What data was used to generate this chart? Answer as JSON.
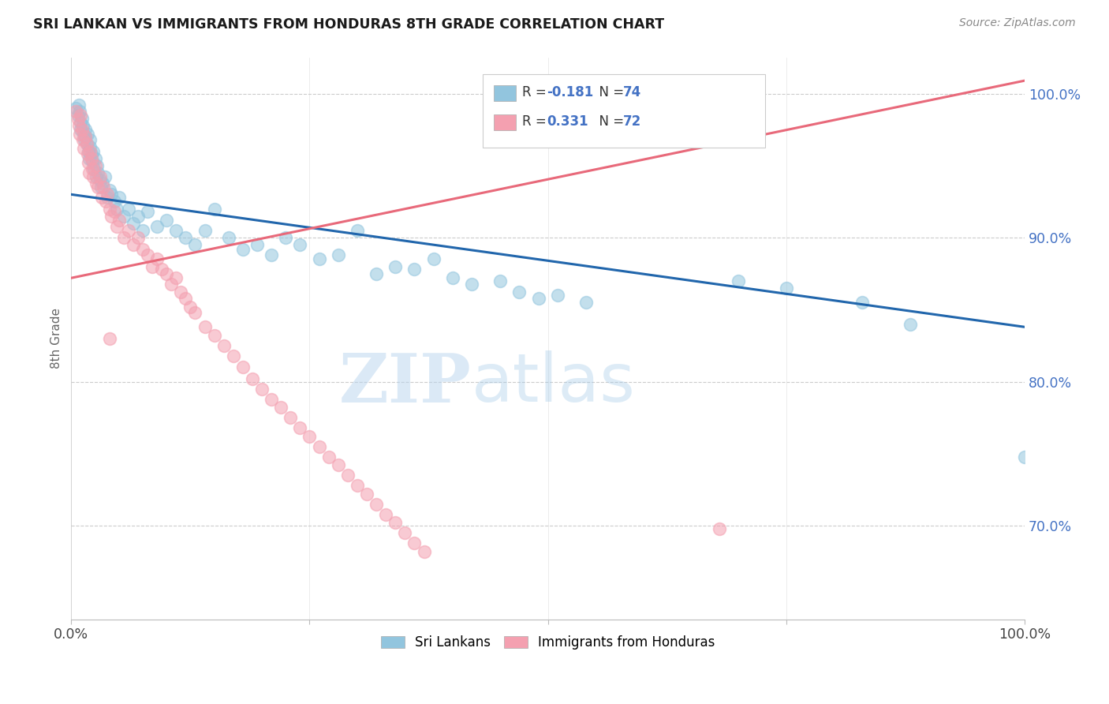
{
  "title": "SRI LANKAN VS IMMIGRANTS FROM HONDURAS 8TH GRADE CORRELATION CHART",
  "source": "Source: ZipAtlas.com",
  "ylabel": "8th Grade",
  "xlim": [
    0,
    1.0
  ],
  "ylim": [
    0.635,
    1.025
  ],
  "yticks": [
    0.7,
    0.8,
    0.9,
    1.0
  ],
  "ytick_labels": [
    "70.0%",
    "80.0%",
    "90.0%",
    "100.0%"
  ],
  "xticks": [
    0.0,
    0.25,
    0.5,
    0.75,
    1.0
  ],
  "xtick_labels": [
    "0.0%",
    "",
    "",
    "",
    "100.0%"
  ],
  "blue_color": "#92c5de",
  "pink_color": "#f4a0b0",
  "blue_line_color": "#2166ac",
  "pink_line_color": "#e8697a",
  "watermark_zip": "ZIP",
  "watermark_atlas": "atlas",
  "blue_trend_x": [
    0.0,
    1.0
  ],
  "blue_trend_y": [
    0.93,
    0.838
  ],
  "pink_trend_x": [
    0.0,
    1.0
  ],
  "pink_trend_y": [
    0.872,
    1.009
  ],
  "blue_r": "-0.181",
  "blue_n": "74",
  "pink_r": "0.331",
  "pink_n": "72",
  "blue_points_x": [
    0.005,
    0.007,
    0.008,
    0.009,
    0.01,
    0.01,
    0.011,
    0.012,
    0.013,
    0.014,
    0.015,
    0.015,
    0.016,
    0.017,
    0.018,
    0.019,
    0.02,
    0.02,
    0.021,
    0.022,
    0.023,
    0.024,
    0.025,
    0.026,
    0.027,
    0.028,
    0.03,
    0.031,
    0.033,
    0.035,
    0.038,
    0.04,
    0.042,
    0.045,
    0.048,
    0.05,
    0.055,
    0.06,
    0.065,
    0.07,
    0.075,
    0.08,
    0.09,
    0.1,
    0.11,
    0.12,
    0.13,
    0.14,
    0.15,
    0.165,
    0.18,
    0.195,
    0.21,
    0.225,
    0.24,
    0.26,
    0.28,
    0.3,
    0.32,
    0.34,
    0.36,
    0.38,
    0.4,
    0.42,
    0.45,
    0.47,
    0.49,
    0.51,
    0.54,
    0.7,
    0.75,
    0.83,
    0.88,
    1.0
  ],
  "blue_points_y": [
    0.99,
    0.985,
    0.992,
    0.988,
    0.98,
    0.975,
    0.983,
    0.978,
    0.972,
    0.968,
    0.975,
    0.97,
    0.965,
    0.972,
    0.96,
    0.955,
    0.968,
    0.963,
    0.958,
    0.953,
    0.96,
    0.948,
    0.955,
    0.942,
    0.95,
    0.945,
    0.94,
    0.935,
    0.938,
    0.942,
    0.928,
    0.933,
    0.93,
    0.925,
    0.92,
    0.928,
    0.915,
    0.92,
    0.91,
    0.915,
    0.905,
    0.918,
    0.908,
    0.912,
    0.905,
    0.9,
    0.895,
    0.905,
    0.92,
    0.9,
    0.892,
    0.895,
    0.888,
    0.9,
    0.895,
    0.885,
    0.888,
    0.905,
    0.875,
    0.88,
    0.878,
    0.885,
    0.872,
    0.868,
    0.87,
    0.862,
    0.858,
    0.86,
    0.855,
    0.87,
    0.865,
    0.855,
    0.84,
    0.748
  ],
  "pink_points_x": [
    0.005,
    0.007,
    0.008,
    0.009,
    0.01,
    0.011,
    0.012,
    0.013,
    0.015,
    0.016,
    0.017,
    0.018,
    0.019,
    0.02,
    0.021,
    0.022,
    0.023,
    0.025,
    0.026,
    0.028,
    0.03,
    0.032,
    0.034,
    0.036,
    0.038,
    0.04,
    0.042,
    0.045,
    0.048,
    0.05,
    0.055,
    0.06,
    0.065,
    0.07,
    0.075,
    0.08,
    0.085,
    0.09,
    0.095,
    0.1,
    0.105,
    0.11,
    0.115,
    0.12,
    0.125,
    0.13,
    0.14,
    0.15,
    0.16,
    0.17,
    0.18,
    0.19,
    0.2,
    0.21,
    0.22,
    0.23,
    0.24,
    0.25,
    0.26,
    0.27,
    0.28,
    0.29,
    0.3,
    0.31,
    0.32,
    0.33,
    0.34,
    0.35,
    0.36,
    0.37,
    0.04,
    0.68
  ],
  "pink_points_y": [
    0.988,
    0.982,
    0.978,
    0.972,
    0.985,
    0.975,
    0.968,
    0.962,
    0.97,
    0.965,
    0.958,
    0.952,
    0.945,
    0.96,
    0.955,
    0.948,
    0.942,
    0.95,
    0.938,
    0.935,
    0.942,
    0.928,
    0.935,
    0.925,
    0.93,
    0.92,
    0.915,
    0.918,
    0.908,
    0.912,
    0.9,
    0.905,
    0.895,
    0.9,
    0.892,
    0.888,
    0.88,
    0.885,
    0.878,
    0.875,
    0.868,
    0.872,
    0.862,
    0.858,
    0.852,
    0.848,
    0.838,
    0.832,
    0.825,
    0.818,
    0.81,
    0.802,
    0.795,
    0.788,
    0.782,
    0.775,
    0.768,
    0.762,
    0.755,
    0.748,
    0.742,
    0.735,
    0.728,
    0.722,
    0.715,
    0.708,
    0.702,
    0.695,
    0.688,
    0.682,
    0.83,
    0.698
  ]
}
